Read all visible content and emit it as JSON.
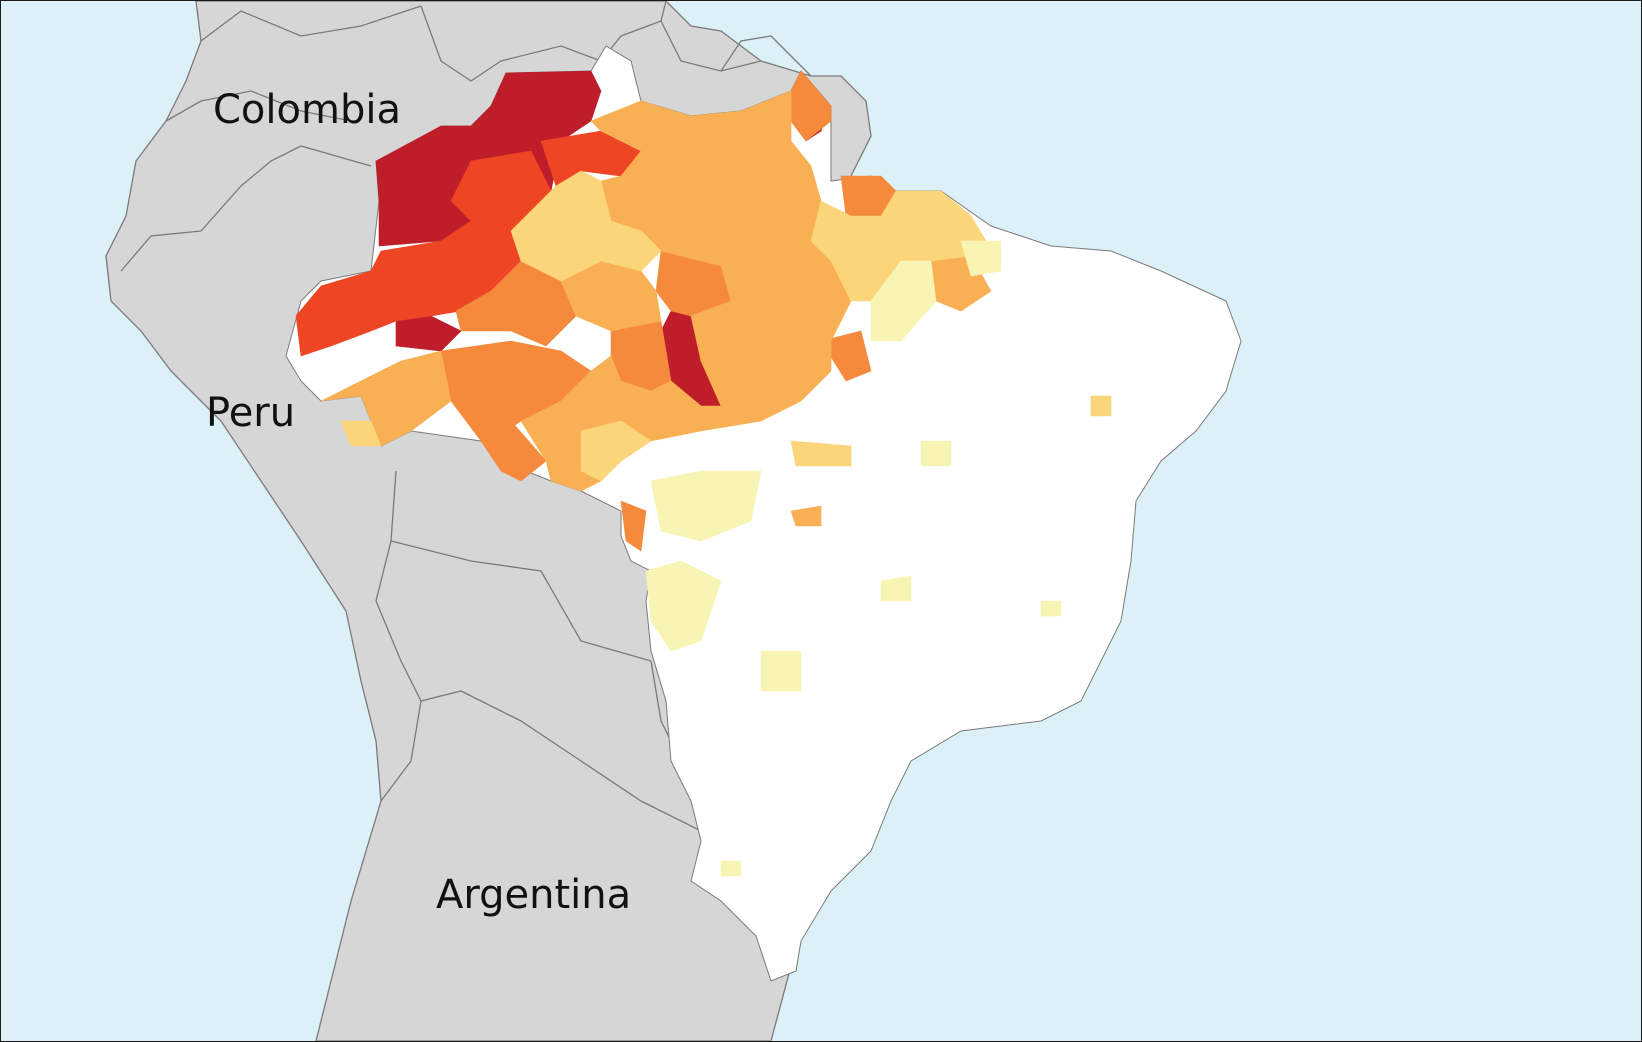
{
  "colors": {
    "ocean": "#dcf0f7",
    "land": "#d6d6d6",
    "border": "#7a7a7a",
    "brazil_base": "#ffffff",
    "classes": [
      "#f8f4b4",
      "#fbd57a",
      "#f9b054",
      "#f58a3c",
      "#ee4524",
      "#bd1e2a"
    ]
  },
  "labels": {
    "colombia": "Colombia",
    "peru": "Peru",
    "argentina": "Argentina"
  }
}
